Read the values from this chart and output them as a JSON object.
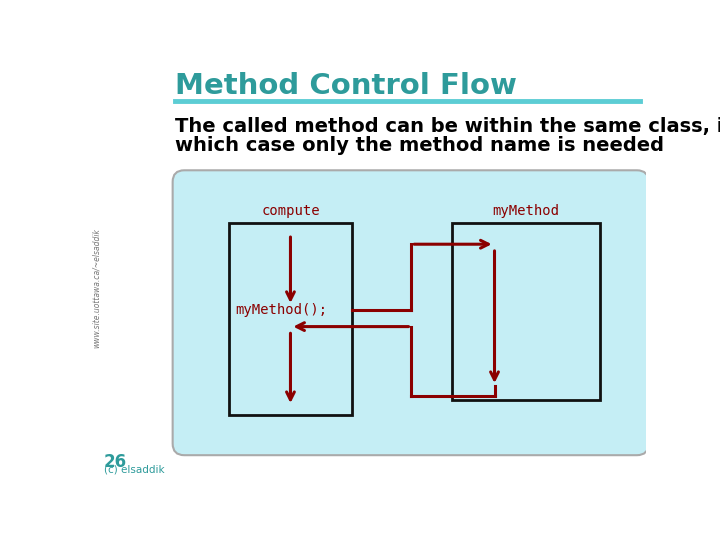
{
  "title": "Method Control Flow",
  "title_color": "#2E9B9B",
  "subtitle_line1": "The called method can be within the same class, in",
  "subtitle_line2": "which case only the method name is needed",
  "subtitle_color": "#000000",
  "bg_color": "#FFFFFF",
  "panel_bg": "#C5EEF5",
  "panel_border": "#AAAAAA",
  "box_color": "#111111",
  "arrow_color": "#8B0000",
  "compute_label": "compute",
  "mymethod_label": "myMethod",
  "mymethod_call": "myMethod();",
  "label_color": "#8B0000",
  "page_num": "26",
  "copyright": "(c) elsaddik",
  "footer_color": "#2E9B9B",
  "teal_line_color": "#5CCDD4",
  "sidebar_text": "www.site.uottawa.ca/~elsaddik",
  "sidebar_color": "#777777"
}
